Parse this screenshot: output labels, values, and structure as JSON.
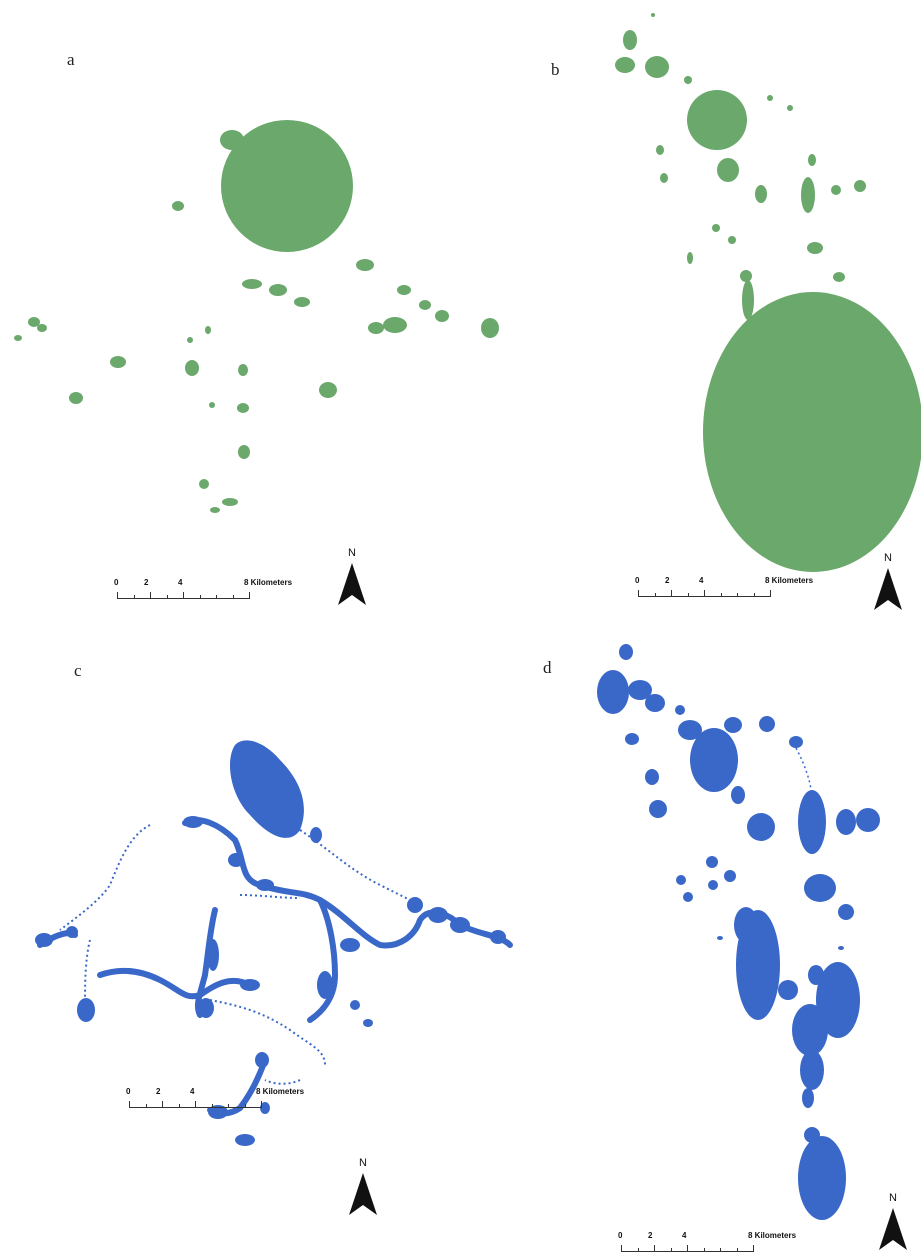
{
  "figure": {
    "panels": [
      {
        "label": "a",
        "fill_color": "#6aa86b"
      },
      {
        "label": "b",
        "fill_color": "#6aa86b"
      },
      {
        "label": "c",
        "fill_color": "#3a68c8"
      },
      {
        "label": "d",
        "fill_color": "#3a68c8"
      }
    ],
    "scale_bar": {
      "tick_labels": [
        "0",
        "2",
        "4",
        "8 Kilometers"
      ]
    },
    "north_arrow": {
      "letter": "N",
      "icon": "north-arrow-icon"
    }
  }
}
